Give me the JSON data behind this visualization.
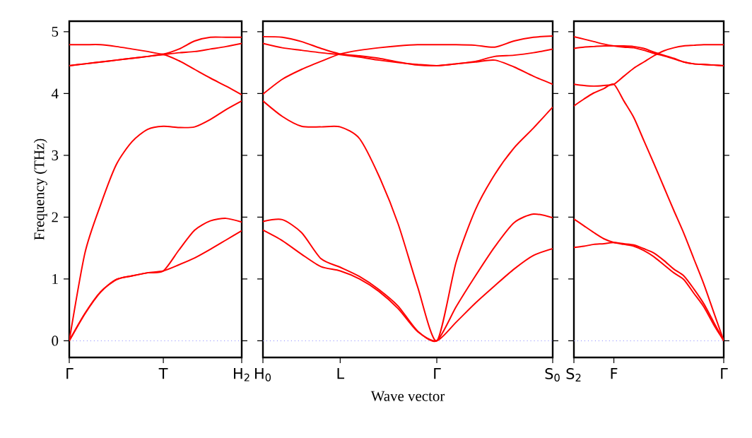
{
  "chart_data": [
    {
      "type": "line",
      "ylabel": "Frequency (THz)",
      "ylim": [
        -0.27,
        5.17
      ],
      "line_style": "solid",
      "categories": [
        "Γ",
        null,
        null,
        null,
        null,
        null,
        "T",
        null,
        null,
        null,
        null,
        "H$_{2}$"
      ],
      "yticks": [
        0,
        1,
        2,
        3,
        4,
        5
      ],
      "ref_lines": [
        {
          "axis": "y",
          "value": 0,
          "color": "#7b7bff",
          "line_style": "dotted"
        }
      ],
      "series": [
        {
          "color": "#ff0000",
          "values": [
            0,
            0.44,
            0.79,
            0.99,
            1.05,
            1.1,
            1.13,
            1.23,
            1.34,
            1.48,
            1.63,
            1.78
          ]
        },
        {
          "color": "#ff0000",
          "values": [
            0,
            0.44,
            0.79,
            0.99,
            1.05,
            1.1,
            1.13,
            1.47,
            1.79,
            1.94,
            1.98,
            1.92
          ]
        },
        {
          "color": "#ff0000",
          "values": [
            0,
            1.42,
            2.2,
            2.85,
            3.22,
            3.42,
            3.47,
            3.45,
            3.46,
            3.58,
            3.74,
            3.88
          ]
        },
        {
          "color": "#ff0000",
          "values": [
            4.45,
            4.48,
            4.51,
            4.54,
            4.57,
            4.6,
            4.63,
            4.53,
            4.39,
            4.25,
            4.12,
            3.98
          ]
        },
        {
          "color": "#ff0000",
          "values": [
            4.45,
            4.48,
            4.51,
            4.54,
            4.57,
            4.6,
            4.63,
            4.66,
            4.68,
            4.72,
            4.76,
            4.81
          ]
        },
        {
          "color": "#ff0000",
          "values": [
            4.79,
            4.79,
            4.79,
            4.76,
            4.72,
            4.68,
            4.64,
            4.72,
            4.85,
            4.91,
            4.91,
            4.91
          ]
        }
      ]
    },
    {
      "type": "line",
      "xlabel": "Wave vector",
      "ylim": [
        -0.27,
        5.17
      ],
      "line_style": "solid",
      "tick_labels": "x",
      "categories": [
        "H$_{0}$",
        null,
        null,
        null,
        "L",
        null,
        null,
        null,
        null,
        "Γ",
        null,
        null,
        null,
        null,
        null,
        "S$_{0}$"
      ],
      "yticks": [
        0,
        1,
        2,
        3,
        4,
        5
      ],
      "ref_lines": [
        {
          "axis": "y",
          "value": 0,
          "color": "#7b7bff",
          "line_style": "dotted"
        }
      ],
      "series": [
        {
          "color": "#ff0000",
          "values": [
            1.79,
            1.62,
            1.4,
            1.2,
            1.13,
            1.0,
            0.8,
            0.52,
            0.15,
            0,
            0.3,
            0.61,
            0.89,
            1.16,
            1.38,
            1.49
          ]
        },
        {
          "color": "#ff0000",
          "values": [
            1.93,
            1.96,
            1.75,
            1.33,
            1.19,
            1.04,
            0.83,
            0.56,
            0.16,
            0,
            0.55,
            1.05,
            1.52,
            1.91,
            2.05,
            1.99
          ]
        },
        {
          "color": "#ff0000",
          "values": [
            3.88,
            3.63,
            3.47,
            3.46,
            3.46,
            3.27,
            2.67,
            1.89,
            0.88,
            0,
            1.27,
            2.12,
            2.69,
            3.12,
            3.44,
            3.78
          ]
        },
        {
          "color": "#ff0000",
          "values": [
            3.99,
            4.23,
            4.39,
            4.52,
            4.64,
            4.7,
            4.74,
            4.77,
            4.79,
            4.79,
            4.79,
            4.78,
            4.75,
            4.85,
            4.91,
            4.93
          ]
        },
        {
          "color": "#ff0000",
          "values": [
            4.81,
            4.74,
            4.7,
            4.66,
            4.63,
            4.59,
            4.54,
            4.5,
            4.47,
            4.45,
            4.48,
            4.52,
            4.6,
            4.62,
            4.66,
            4.72
          ]
        },
        {
          "color": "#ff0000",
          "values": [
            4.92,
            4.91,
            4.84,
            4.73,
            4.64,
            4.61,
            4.57,
            4.51,
            4.46,
            4.45,
            4.48,
            4.51,
            4.54,
            4.43,
            4.28,
            4.15
          ]
        }
      ]
    },
    {
      "type": "line",
      "ylim": [
        -0.27,
        5.17
      ],
      "line_style": "solid",
      "tick_labels": "x",
      "categories": [
        "S$_{2}$",
        null,
        null,
        null,
        "F",
        null,
        null,
        null,
        null,
        null,
        null,
        null,
        null,
        null,
        null,
        "Γ"
      ],
      "yticks": [
        0,
        1,
        2,
        3,
        4,
        5
      ],
      "ref_lines": [
        {
          "axis": "y",
          "value": 0,
          "color": "#7b7bff",
          "line_style": "dotted"
        }
      ],
      "series": [
        {
          "color": "#ff0000",
          "values": [
            1.51,
            1.53,
            1.56,
            1.57,
            1.59,
            1.57,
            1.55,
            1.49,
            1.42,
            1.3,
            1.16,
            1.05,
            0.84,
            0.6,
            0.3,
            0
          ]
        },
        {
          "color": "#ff0000",
          "values": [
            1.97,
            1.86,
            1.75,
            1.65,
            1.59,
            1.56,
            1.53,
            1.46,
            1.36,
            1.23,
            1.1,
            0.99,
            0.77,
            0.55,
            0.26,
            0
          ]
        },
        {
          "color": "#ff0000",
          "values": [
            3.8,
            3.91,
            4.01,
            4.08,
            4.15,
            3.88,
            3.61,
            3.24,
            2.87,
            2.49,
            2.11,
            1.74,
            1.33,
            0.92,
            0.46,
            0
          ]
        },
        {
          "color": "#ff0000",
          "values": [
            4.15,
            4.13,
            4.12,
            4.13,
            4.15,
            4.28,
            4.41,
            4.51,
            4.61,
            4.69,
            4.74,
            4.77,
            4.78,
            4.79,
            4.79,
            4.79
          ]
        },
        {
          "color": "#ff0000",
          "values": [
            4.73,
            4.75,
            4.76,
            4.77,
            4.77,
            4.77,
            4.76,
            4.73,
            4.67,
            4.62,
            4.57,
            4.51,
            4.48,
            4.47,
            4.46,
            4.45
          ]
        },
        {
          "color": "#ff0000",
          "values": [
            4.92,
            4.88,
            4.84,
            4.8,
            4.77,
            4.75,
            4.74,
            4.7,
            4.65,
            4.61,
            4.56,
            4.51,
            4.48,
            4.47,
            4.46,
            4.45
          ]
        }
      ]
    }
  ]
}
